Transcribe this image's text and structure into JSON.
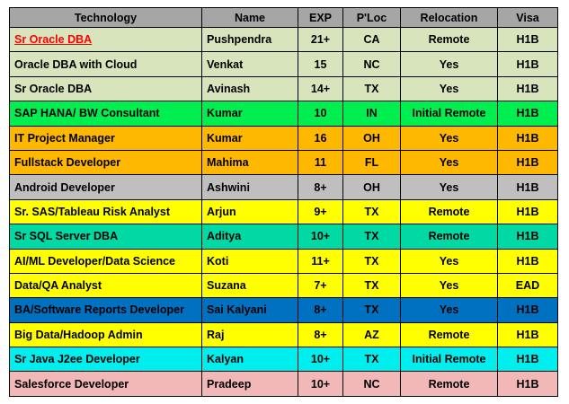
{
  "table": {
    "headers": [
      "Technology",
      "Name",
      "EXP",
      "P'Loc",
      "Relocation",
      "Visa"
    ],
    "header_color": "#a6a6a6",
    "rows": [
      [
        "Sr Oracle DBA",
        "Pushpendra",
        "21+",
        "CA",
        "Remote",
        "H1B"
      ],
      [
        "Oracle DBA with Cloud",
        "Venkat",
        "15",
        "NC",
        "Yes",
        "H1B"
      ],
      [
        "Sr Oracle DBA",
        "Avinash",
        "14+",
        "TX",
        "Yes",
        "H1B"
      ],
      [
        "SAP HANA/ BW Consultant",
        "Kumar",
        "10",
        "IN",
        "Initial Remote",
        "H1B"
      ],
      [
        "IT Project Manager",
        "Kumar",
        "16",
        "OH",
        "Yes",
        "H1B"
      ],
      [
        "Fullstack Developer",
        "Mahima",
        "11",
        "FL",
        "Yes",
        "H1B"
      ],
      [
        "Android Developer",
        "Ashwini",
        "8+",
        "OH",
        "Yes",
        "H1B"
      ],
      [
        "Sr. SAS/Tableau Risk Analyst",
        "Arjun",
        "9+",
        "TX",
        "Remote",
        "H1B"
      ],
      [
        "Sr SQL Server DBA",
        "Aditya",
        "10+",
        "TX",
        "Remote",
        "H1B"
      ],
      [
        "AI/ML Developer/Data Science",
        "Koti",
        "11+",
        "TX",
        "Yes",
        "H1B"
      ],
      [
        "Data/QA Analyst",
        "Suzana",
        "7+",
        "TX",
        "Yes",
        "EAD"
      ],
      [
        "BA/Software Reports Developer",
        "Sai Kalyani",
        "8+",
        "TX",
        "Yes",
        "H1B"
      ],
      [
        "Big Data/Hadoop Admin",
        "Raj",
        "8+",
        "AZ",
        "Remote",
        "H1B"
      ],
      [
        "Sr Java J2ee Developer",
        "Kalyan",
        "10+",
        "TX",
        "Initial Remote",
        "H1B"
      ],
      [
        "Salesforce Developer",
        "Pradeep",
        "10+",
        "NC",
        "Remote",
        "H1B"
      ]
    ],
    "row_colors": [
      "#d8e4bc",
      "#d8e4bc",
      "#d8e4bc",
      "#00ee50",
      "#ffb800",
      "#ffb800",
      "#bfbfbf",
      "#ffff00",
      "#00d9a3",
      "#ffff00",
      "#ffff00",
      "#0070c0",
      "#ffff00",
      "#00eeee",
      "#f2b8b8"
    ]
  }
}
